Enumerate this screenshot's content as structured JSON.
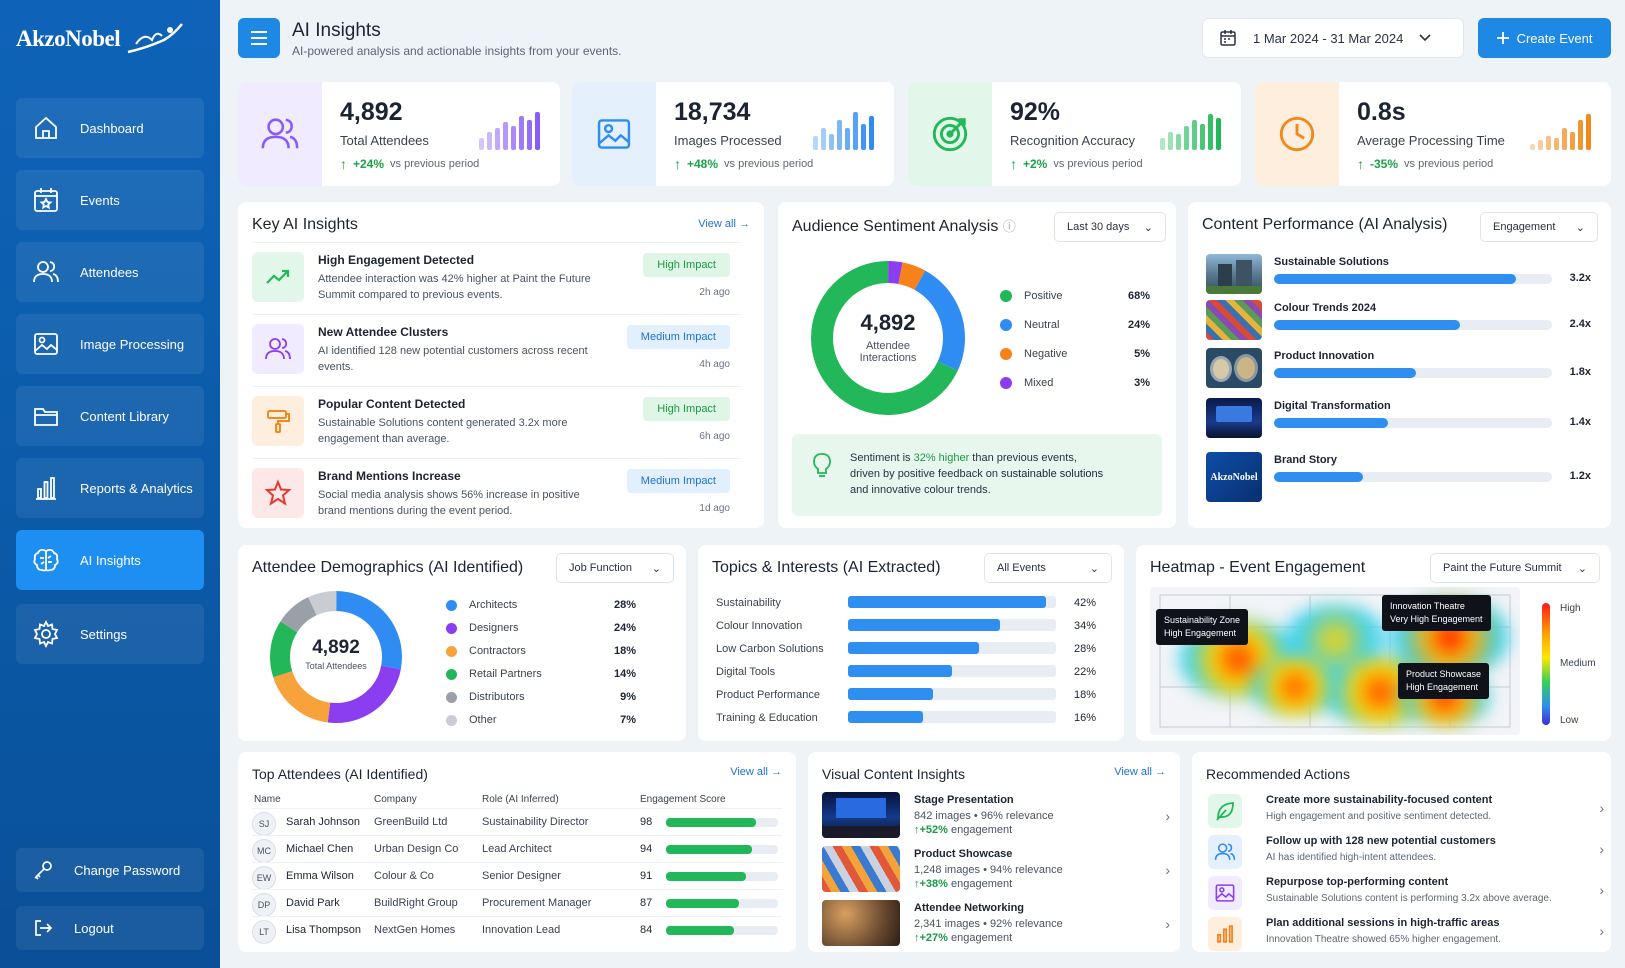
{
  "brand": {
    "name": "AkzoNobel"
  },
  "sidebar": {
    "items": [
      {
        "label": "Dashboard",
        "icon": "home-icon"
      },
      {
        "label": "Events",
        "icon": "calendar-star-icon"
      },
      {
        "label": "Attendees",
        "icon": "users-icon"
      },
      {
        "label": "Image Processing",
        "icon": "image-icon"
      },
      {
        "label": "Content Library",
        "icon": "folder-icon"
      },
      {
        "label": "Reports & Analytics",
        "icon": "bar-chart-icon"
      },
      {
        "label": "AI Insights",
        "icon": "brain-icon",
        "active": true
      },
      {
        "label": "Settings",
        "icon": "gear-icon"
      }
    ],
    "change_password": "Change Password",
    "logout": "Logout"
  },
  "header": {
    "title": "AI Insights",
    "subtitle": "AI-powered analysis and actionable insights from your events.",
    "date_range": "1 Mar 2024 - 31 Mar 2024",
    "create_event": "Create Event"
  },
  "stats": [
    {
      "value": "4,892",
      "label": "Total Attendees",
      "change": "+24%",
      "suffix": "vs previous period",
      "color": "#8a5cf6",
      "bg": "#f1ebff",
      "bars": [
        0.3,
        0.45,
        0.55,
        0.7,
        0.6,
        0.85,
        0.75,
        0.95
      ]
    },
    {
      "value": "18,734",
      "label": "Images Processed",
      "change": "+48%",
      "suffix": "vs previous period",
      "color": "#2f8cf2",
      "bg": "#e5f0fd",
      "bars": [
        0.35,
        0.55,
        0.4,
        0.75,
        0.55,
        0.95,
        0.65,
        0.85
      ]
    },
    {
      "value": "92%",
      "label": "Recognition Accuracy",
      "change": "+2%",
      "suffix": "vs previous period",
      "color": "#22b85a",
      "bg": "#e3f6ea",
      "bars": [
        0.3,
        0.45,
        0.4,
        0.6,
        0.75,
        0.65,
        0.9,
        0.8
      ]
    },
    {
      "value": "0.8s",
      "label": "Average Processing Time",
      "change": "-35%",
      "suffix": "vs previous period",
      "color": "#f08a1c",
      "bg": "#fdeedd",
      "bars": [
        0.15,
        0.25,
        0.35,
        0.3,
        0.55,
        0.45,
        0.75,
        0.9
      ]
    }
  ],
  "key_insights": {
    "title": "Key AI Insights",
    "view_all": "View all",
    "items": [
      {
        "title": "High Engagement Detected",
        "desc": "Attendee interaction was 42% higher at Paint the Future Summit compared to previous events.",
        "badge": "High Impact",
        "level": "high",
        "time": "2h ago",
        "icon": "trend-up-icon"
      },
      {
        "title": "New Attendee Clusters",
        "desc": "AI identified 128 new potential customers across recent events.",
        "badge": "Medium Impact",
        "level": "med",
        "time": "4h ago",
        "icon": "users-icon"
      },
      {
        "title": "Popular Content Detected",
        "desc": "Sustainable Solutions content generated 3.2x more engagement than average.",
        "badge": "High Impact",
        "level": "high",
        "time": "6h ago",
        "icon": "paint-roller-icon"
      },
      {
        "title": "Brand Mentions Increase",
        "desc": "Social media analysis shows 56% increase in positive brand mentions during the event period.",
        "badge": "Medium Impact",
        "level": "med",
        "time": "1d ago",
        "icon": "star-icon"
      }
    ]
  },
  "sentiment": {
    "title": "Audience Sentiment Analysis",
    "filter": "Last 30 days",
    "center_value": "4,892",
    "center_label_1": "Attendee",
    "center_label_2": "Interactions",
    "segments": [
      {
        "label": "Positive",
        "pct": "68%",
        "value": 68,
        "color": "#22b85a"
      },
      {
        "label": "Neutral",
        "pct": "24%",
        "value": 24,
        "color": "#2f8cf2"
      },
      {
        "label": "Negative",
        "pct": "5%",
        "value": 5,
        "color": "#f7821b"
      },
      {
        "label": "Mixed",
        "pct": "3%",
        "value": 3,
        "color": "#8a3ef0"
      }
    ],
    "note_1": "Sentiment is ",
    "note_hl": "32% higher",
    "note_2": " than previous events,",
    "note_3": "driven by positive feedback on ",
    "note_b": "sustainable solutions",
    "note_4": "and innovative colour trends."
  },
  "content_perf": {
    "title": "Content Performance (AI Analysis)",
    "filter": "Engagement",
    "items": [
      {
        "name": "Sustainable Solutions",
        "value": "3.2x",
        "fraction": 0.87
      },
      {
        "name": "Colour Trends 2024",
        "value": "2.4x",
        "fraction": 0.67
      },
      {
        "name": "Product Innovation",
        "value": "1.8x",
        "fraction": 0.51
      },
      {
        "name": "Digital Transformation",
        "value": "1.4x",
        "fraction": 0.41
      },
      {
        "name": "Brand Story",
        "value": "1.2x",
        "fraction": 0.32
      }
    ],
    "thumb_logo": "AkzoNobel"
  },
  "demographics": {
    "title": "Attendee Demographics (AI Identified)",
    "filter": "Job Function",
    "center_value": "4,892",
    "center_label": "Total Attendees",
    "segments": [
      {
        "label": "Architects",
        "pct": "28%",
        "value": 28,
        "color": "#2f8cf2"
      },
      {
        "label": "Designers",
        "pct": "24%",
        "value": 24,
        "color": "#8a3ef0"
      },
      {
        "label": "Contractors",
        "pct": "18%",
        "value": 18,
        "color": "#f7a23b"
      },
      {
        "label": "Retail Partners",
        "pct": "14%",
        "value": 14,
        "color": "#22b85a"
      },
      {
        "label": "Distributors",
        "pct": "9%",
        "value": 9,
        "color": "#9aa0a8"
      },
      {
        "label": "Other",
        "pct": "7%",
        "value": 7,
        "color": "#c9cdd3"
      }
    ]
  },
  "topics": {
    "title": "Topics & Interests (AI Extracted)",
    "filter": "All Events",
    "items": [
      {
        "label": "Sustainability",
        "pct": "42%",
        "fraction": 0.95
      },
      {
        "label": "Colour Innovation",
        "pct": "34%",
        "fraction": 0.73
      },
      {
        "label": "Low Carbon Solutions",
        "pct": "28%",
        "fraction": 0.63
      },
      {
        "label": "Digital Tools",
        "pct": "22%",
        "fraction": 0.5
      },
      {
        "label": "Product Performance",
        "pct": "18%",
        "fraction": 0.41
      },
      {
        "label": "Training & Education",
        "pct": "16%",
        "fraction": 0.36
      }
    ]
  },
  "heatmap": {
    "title": "Heatmap - Event Engagement",
    "filter": "Paint the Future Summit",
    "tags": [
      {
        "name": "Sustainability Zone",
        "sub": "High Engagement"
      },
      {
        "name": "Innovation Theatre",
        "sub": "Very High Engagement"
      },
      {
        "name": "Product Showcase",
        "sub": "High Engagement"
      }
    ],
    "scale_high": "High",
    "scale_mid": "Medium",
    "scale_low": "Low"
  },
  "top_attendees": {
    "title": "Top Attendees (AI Identified)",
    "view_all": "View all",
    "headers": [
      "Name",
      "Company",
      "Role (AI Inferred)",
      "Engagement Score"
    ],
    "rows": [
      {
        "initials": "SJ",
        "name": "Sarah Johnson",
        "company": "GreenBuild Ltd",
        "role": "Sustainability Director",
        "score": "98",
        "fraction": 0.8
      },
      {
        "initials": "MC",
        "name": "Michael Chen",
        "company": "Urban Design Co",
        "role": "Lead Architect",
        "score": "94",
        "fraction": 0.77
      },
      {
        "initials": "EW",
        "name": "Emma Wilson",
        "company": "Colour & Co",
        "role": "Senior Designer",
        "score": "91",
        "fraction": 0.71
      },
      {
        "initials": "DP",
        "name": "David Park",
        "company": "BuildRight Group",
        "role": "Procurement Manager",
        "score": "87",
        "fraction": 0.65
      },
      {
        "initials": "LT",
        "name": "Lisa Thompson",
        "company": "NextGen Homes",
        "role": "Innovation Lead",
        "score": "84",
        "fraction": 0.61
      }
    ]
  },
  "visual_insights": {
    "title": "Visual Content Insights",
    "view_all": "View all",
    "items": [
      {
        "title": "Stage Presentation",
        "meta": "842 images • 96% relevance",
        "eng": "+52%",
        "suffix": "engagement"
      },
      {
        "title": "Product Showcase",
        "meta": "1,248 images • 94% relevance",
        "eng": "+38%",
        "suffix": "engagement"
      },
      {
        "title": "Attendee Networking",
        "meta": "2,341 images • 92% relevance",
        "eng": "+27%",
        "suffix": "engagement"
      }
    ]
  },
  "recommended": {
    "title": "Recommended Actions",
    "items": [
      {
        "title": "Create more sustainability-focused content",
        "desc": "High engagement and positive sentiment detected.",
        "icon": "leaf-icon",
        "color": "#22b85a",
        "bg": "#e3f6ea"
      },
      {
        "title": "Follow up with 128 new potential customers",
        "desc": "AI has identified high-intent attendees.",
        "icon": "users-icon",
        "color": "#2f8cf2",
        "bg": "#e5f0fd"
      },
      {
        "title": "Repurpose top-performing content",
        "desc": "Sustainable Solutions content is performing 3.2x above average.",
        "icon": "image-icon",
        "color": "#8a3ef0",
        "bg": "#f1ebff"
      },
      {
        "title": "Plan additional sessions in high-traffic areas",
        "desc": "Innovation Theatre showed 65% higher engagement.",
        "icon": "bar-chart-icon",
        "color": "#f7821b",
        "bg": "#fdeedd"
      }
    ]
  }
}
